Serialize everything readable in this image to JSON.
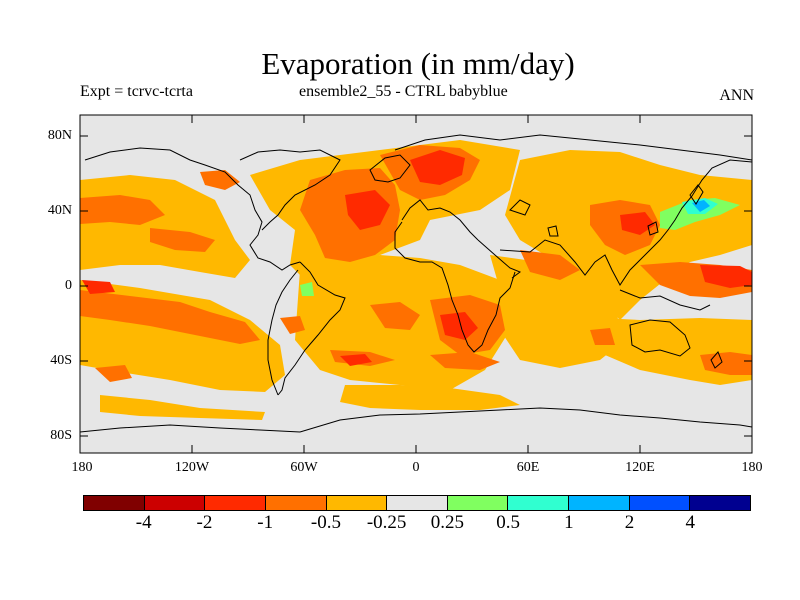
{
  "title": "Evaporation (in mm/day)",
  "left_label": "Expt = tcrvc-tcrta",
  "center_label": "ensemble2_55 - CTRL babyblue",
  "right_label": "ANN",
  "y_ticks": [
    "80N",
    "40N",
    "0",
    "40S",
    "80S"
  ],
  "x_ticks": [
    "180",
    "120W",
    "60W",
    "0",
    "60E",
    "120E",
    "180"
  ],
  "colorbar": {
    "colors": [
      "#800000",
      "#cc0000",
      "#ff2a00",
      "#ff7000",
      "#ffb800",
      "#e6e6e6",
      "#80ff60",
      "#30ffd0",
      "#00b4ff",
      "#0050ff",
      "#000090"
    ],
    "labels": [
      "-4",
      "-2",
      "-1",
      "-0.5",
      "-0.25",
      "0.25",
      "0.5",
      "1",
      "2",
      "4"
    ]
  },
  "map_colors": {
    "ocean_background": "#e6e6e6",
    "orange": "#ffb800",
    "dark_orange": "#ff7000",
    "red": "#ff2a00",
    "green": "#80ff60",
    "cyan": "#30ffd0",
    "blue": "#00b4ff"
  }
}
